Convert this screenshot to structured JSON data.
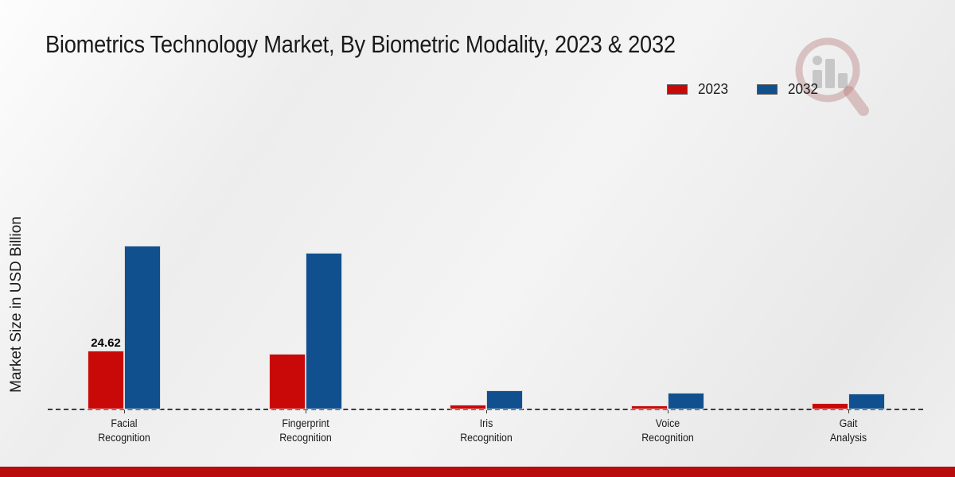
{
  "title": "Biometrics Technology Market, By Biometric Modality, 2023 & 2032",
  "y_axis_label": "Market Size in USD Billion",
  "legend": {
    "position": "top-right",
    "items": [
      {
        "label": "2023",
        "color": "#c90808"
      },
      {
        "label": "2032",
        "color": "#10508f"
      }
    ]
  },
  "colors": {
    "series_2023": "#c90808",
    "series_2032": "#10508f",
    "baseline": "#3c3c3c",
    "footer_strip": "#b90c0c",
    "text": "#1a1a1a"
  },
  "footer": {
    "strip_color": "#b90c0c"
  },
  "chart_data": {
    "type": "bar",
    "title": "Biometrics Technology Market, By Biometric Modality, 2023 & 2032",
    "xlabel": "",
    "ylabel": "Market Size in USD Billion",
    "categories": [
      "Facial\nRecognition",
      "Fingerprint\nRecognition",
      "Iris\nRecognition",
      "Voice\nRecognition",
      "Gait\nAnalysis"
    ],
    "series": [
      {
        "name": "2023",
        "color": "#c90808",
        "values": [
          24.62,
          23.2,
          2.1,
          1.8,
          2.6
        ],
        "value_labels": [
          "24.62",
          null,
          null,
          null,
          null
        ]
      },
      {
        "name": "2032",
        "color": "#10508f",
        "values": [
          68.7,
          65.7,
          8.0,
          7.1,
          6.8
        ],
        "value_labels": [
          null,
          null,
          null,
          null,
          null
        ]
      }
    ],
    "ylim": [
      0,
      120
    ],
    "grid": false,
    "baseline_style": "dashed",
    "legend_position": "top-right",
    "y_axis_visible": false
  }
}
